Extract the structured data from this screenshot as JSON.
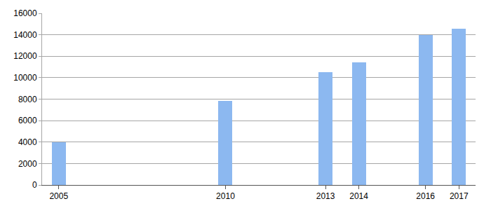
{
  "chart_data": {
    "type": "bar",
    "x": [
      2005,
      2010,
      2013,
      2014,
      2016,
      2017
    ],
    "values": [
      4000,
      7850,
      10500,
      11400,
      14000,
      14550
    ],
    "color": "#8cb8f0",
    "xlim": [
      2004.5,
      2017.5
    ],
    "xticks": [
      2005,
      2010,
      2013,
      2014,
      2016,
      2017
    ],
    "ylim": [
      0,
      16000
    ],
    "yticks": [
      0,
      2000,
      4000,
      6000,
      8000,
      10000,
      12000,
      14000,
      16000
    ],
    "grid": true
  }
}
